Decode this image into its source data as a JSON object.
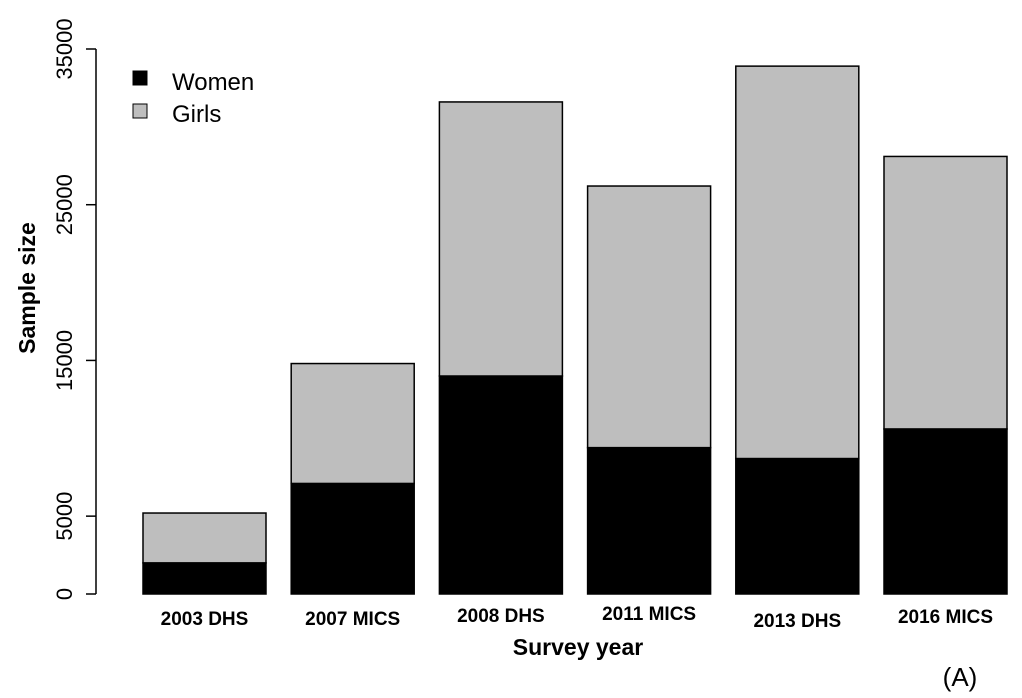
{
  "chart_data": {
    "type": "bar",
    "stacked": true,
    "categories": [
      "2003 DHS",
      "2007 MICS",
      "2008 DHS",
      "2011 MICS",
      "2013 DHS",
      "2016 MICS"
    ],
    "series": [
      {
        "name": "Women",
        "color": "#000000",
        "values": [
          2000,
          7100,
          14000,
          9400,
          8700,
          10600
        ]
      },
      {
        "name": "Girls",
        "color": "#bebebe",
        "values": [
          3200,
          7700,
          17600,
          16800,
          25200,
          17500
        ]
      }
    ],
    "totals": [
      5200,
      14800,
      31600,
      26200,
      33900,
      28100
    ],
    "yticks": [
      0,
      5000,
      15000,
      25000,
      35000
    ],
    "ylim": [
      0,
      35000
    ],
    "xlabel": "Survey year",
    "ylabel": "Sample size",
    "legend_position": "top-left",
    "panel_label": "(A)"
  }
}
